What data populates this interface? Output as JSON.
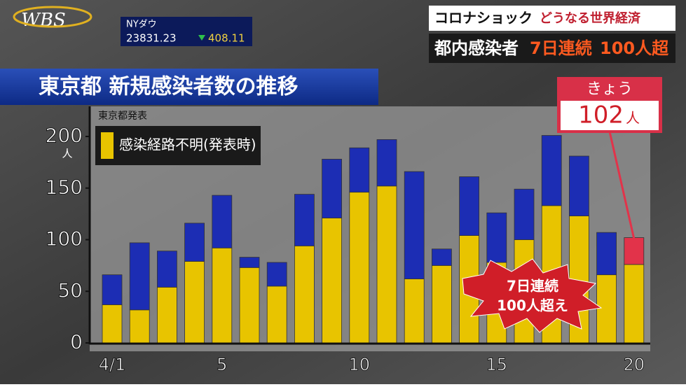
{
  "logo": "WBS",
  "ticker": {
    "label": "NYダウ",
    "value": "23831.23",
    "change": "408.11"
  },
  "banner": {
    "line1a": "コロナショック",
    "line1b": "どうなる世界経済",
    "line2a": "都内感染者",
    "line2b": "7日連続",
    "line2c": "100人超"
  },
  "chart_data": {
    "type": "stacked_bar",
    "title": "東京都 新規感染者数の推移",
    "source": "東京都発表",
    "y_unit": "人",
    "categories": [
      "4/1",
      null,
      null,
      null,
      "5",
      null,
      null,
      null,
      null,
      "10",
      null,
      null,
      null,
      null,
      "15",
      null,
      null,
      null,
      null,
      "20"
    ],
    "series": [
      {
        "name": "感染経路不明(発表時)",
        "color": "#e8c400",
        "values": [
          37,
          32,
          54,
          79,
          92,
          73,
          55,
          94,
          121,
          146,
          152,
          62,
          75,
          104,
          78,
          100,
          133,
          123,
          66,
          76
        ]
      },
      {
        "color": "#1c2db4",
        "values": [
          29,
          65,
          35,
          37,
          51,
          10,
          23,
          50,
          57,
          43,
          45,
          104,
          16,
          57,
          48,
          49,
          68,
          58,
          41,
          null
        ]
      },
      {
        "color": "#e2334a",
        "values": [
          null,
          null,
          null,
          null,
          null,
          null,
          null,
          null,
          null,
          null,
          null,
          null,
          null,
          null,
          null,
          null,
          null,
          null,
          null,
          26
        ]
      }
    ],
    "ylim": [
      0,
      220
    ],
    "yticks": [
      0,
      50,
      100,
      150,
      200
    ],
    "callout": {
      "label": "きょう",
      "value": "102",
      "unit": "人"
    },
    "annotation": {
      "line1": "7日連続",
      "line2": "100人超え"
    }
  }
}
